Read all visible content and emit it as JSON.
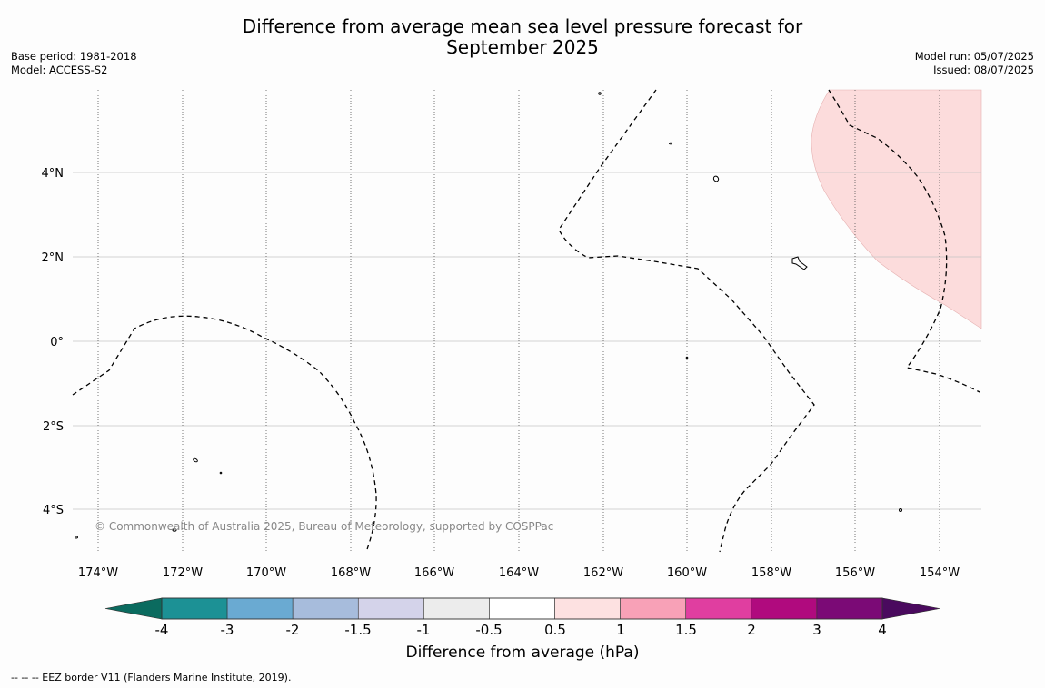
{
  "title_line1": "Difference from average mean sea level pressure forecast for",
  "title_line2": "September 2025",
  "base_period": "Base period: 1981-2018",
  "model": "Model: ACCESS-S2",
  "model_run": "Model run: 05/07/2025",
  "issued": "Issued: 08/07/2025",
  "copyright": "© Commonwealth of Australia 2025, Bureau of Meteorology, supported by COSPPac",
  "footnote": "--  --  -- EEZ border V11 (Flanders Marine Institute, 2019).",
  "map": {
    "lon_labels": [
      "174°W",
      "172°W",
      "170°W",
      "168°W",
      "166°W",
      "164°W",
      "162°W",
      "160°W",
      "158°W",
      "156°W",
      "154°W"
    ],
    "lat_labels": [
      "4°N",
      "2°N",
      "0°",
      "2°S",
      "4°S"
    ],
    "anomaly_region_color": "#fcdcdc",
    "anomaly_region_value": "0.5 to 1"
  },
  "colorbar": {
    "label": "Difference from average (hPa)",
    "ticks": [
      "-4",
      "-3",
      "-2",
      "-1.5",
      "-1",
      "-0.5",
      "0.5",
      "1",
      "1.5",
      "2",
      "3",
      "4"
    ],
    "low_extend_color": "#0b6b5f",
    "high_extend_color": "#4a0a5e",
    "colors": [
      "#1c9195",
      "#6aaad2",
      "#a7bcdc",
      "#d4d3ea",
      "#ececec",
      "#ffffff",
      "#fde1e1",
      "#f8a1b7",
      "#e03ea0",
      "#b00a7e",
      "#7b0a76"
    ]
  }
}
